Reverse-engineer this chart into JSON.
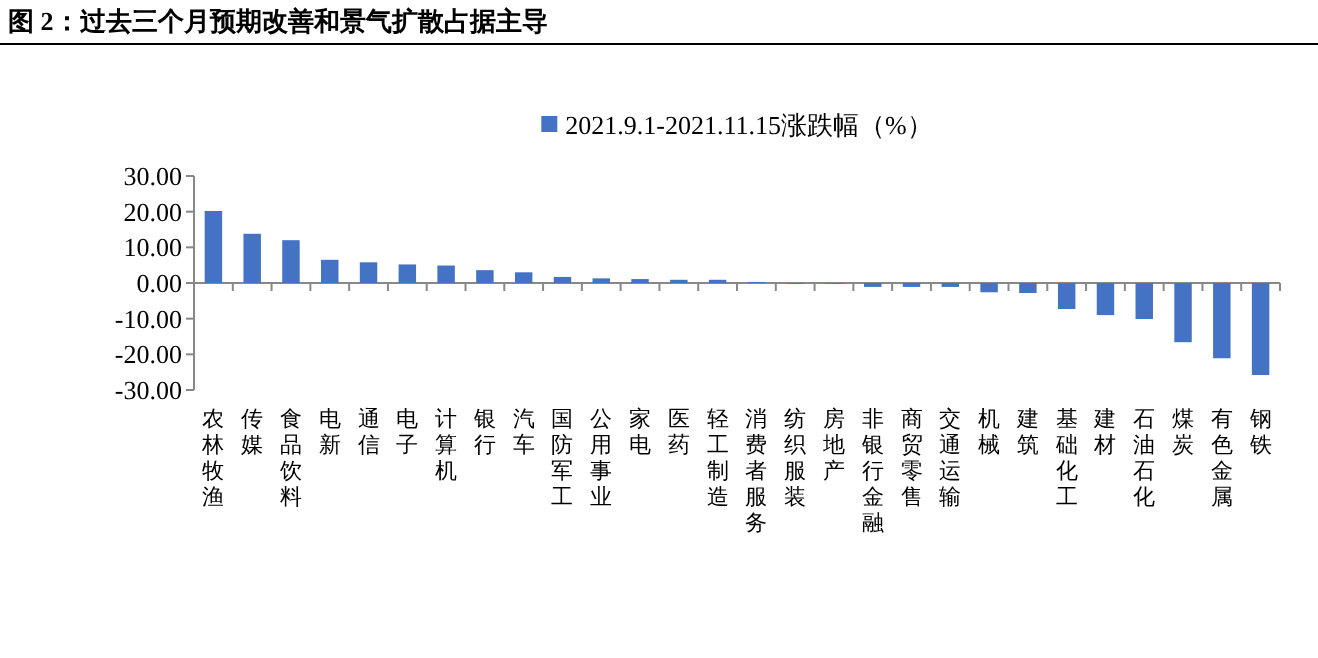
{
  "chart_data": {
    "type": "bar",
    "title": "图 2：过去三个月预期改善和景气扩散占据主导",
    "categories": [
      "农林牧渔",
      "传媒",
      "食品饮料",
      "电新",
      "通信",
      "电子",
      "计算机",
      "银行",
      "汽车",
      "国防军工",
      "公用事业",
      "家电",
      "医药",
      "轻工制造",
      "消费者服务",
      "纺织服装",
      "房地产",
      "非银行金融",
      "商贸零售",
      "交通运输",
      "机械",
      "建筑",
      "基础化工",
      "建材",
      "石油石化",
      "煤炭",
      "有色金属",
      "钢铁"
    ],
    "series": [
      {
        "name": "2021.9.1-2021.11.15涨跌幅（%）",
        "color": "#4472c4",
        "values": [
          20.2,
          13.8,
          12.0,
          6.5,
          5.8,
          5.2,
          4.9,
          3.6,
          3.0,
          1.7,
          1.3,
          1.1,
          0.9,
          0.9,
          0.3,
          -0.2,
          -0.2,
          -1.1,
          -1.1,
          -1.1,
          -2.6,
          -2.8,
          -7.3,
          -9.0,
          -10.1,
          -16.6,
          -21.1,
          -25.8
        ]
      }
    ],
    "ylim": [
      -30,
      30
    ],
    "yticks": [
      {
        "value": 30,
        "label": "30.00"
      },
      {
        "value": 20,
        "label": "20.00"
      },
      {
        "value": 10,
        "label": "10.00"
      },
      {
        "value": 0,
        "label": "0.00"
      },
      {
        "value": -10,
        "label": "-10.00"
      },
      {
        "value": -20,
        "label": "-20.00"
      },
      {
        "value": -30,
        "label": "-30.00"
      }
    ],
    "legend": "top"
  }
}
